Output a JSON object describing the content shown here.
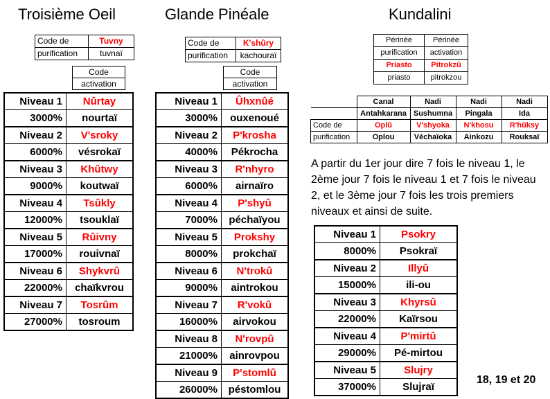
{
  "titles": {
    "third_eye": "Troisième Oeil",
    "pineal": "Glande Pinéale",
    "kundalini": "Kundalini"
  },
  "labels": {
    "code_de": "Code de",
    "purification": "purification",
    "code": "Code",
    "activation": "activation"
  },
  "third_eye": {
    "purif_code": "Tuvny",
    "purif_pron": "tuvnaï",
    "levels": [
      {
        "niveau": "Niveau 1",
        "code": "Nûrtay",
        "pct": "3000%",
        "pron": "nourtaï"
      },
      {
        "niveau": "Niveau 2",
        "code": "V'sroky",
        "pct": "6000%",
        "pron": "vésrokaï"
      },
      {
        "niveau": "Niveau 3",
        "code": "Khûtwy",
        "pct": "9000%",
        "pron": "koutwaï"
      },
      {
        "niveau": "Niveau 4",
        "code": "Tsûkly",
        "pct": "12000%",
        "pron": "tsouklaï"
      },
      {
        "niveau": "Niveau 5",
        "code": "Rûivny",
        "pct": "17000%",
        "pron": "rouivnaï"
      },
      {
        "niveau": "Niveau 6",
        "code": "Shykvrû",
        "pct": "22000%",
        "pron": "chaïkvrou"
      },
      {
        "niveau": "Niveau 7",
        "code": "Tosrûm",
        "pct": "27000%",
        "pron": "tosroum"
      }
    ]
  },
  "pineal": {
    "purif_code": "K'shûry",
    "purif_pron": "kachouraï",
    "levels": [
      {
        "niveau": "Niveau 1",
        "code": "Ûhxnûé",
        "pct": "3000%",
        "pron": "ouxenoué"
      },
      {
        "niveau": "Niveau 2",
        "code": "P'krosha",
        "pct": "4000%",
        "pron": "Pékrocha"
      },
      {
        "niveau": "Niveau 3",
        "code": "R'nhyro",
        "pct": "6000%",
        "pron": "airnaïro"
      },
      {
        "niveau": "Niveau 4",
        "code": "P'shyû",
        "pct": "7000%",
        "pron": "péchaïyou"
      },
      {
        "niveau": "Niveau 5",
        "code": "Prokshy",
        "pct": "8000%",
        "pron": "prokchaï"
      },
      {
        "niveau": "Niveau 6",
        "code": "N'trokû",
        "pct": "9000%",
        "pron": "aintrokou"
      },
      {
        "niveau": "Niveau 7",
        "code": "R'vokû",
        "pct": "16000%",
        "pron": "airvokou"
      },
      {
        "niveau": "Niveau 8",
        "code": "N'rovpû",
        "pct": "21000%",
        "pron": "ainrovpou"
      },
      {
        "niveau": "Niveau 9",
        "code": "P'stomlû",
        "pct": "26000%",
        "pron": "péstomlou"
      }
    ]
  },
  "kundalini": {
    "perinee_headers": [
      "Périnée",
      "Périnée"
    ],
    "perinee_sub": [
      "purification",
      "activation"
    ],
    "perinee_codes": [
      "Priasto",
      "Pitrokzû"
    ],
    "perinee_pron": [
      "priasto",
      "pitrokzou"
    ],
    "nadi_headers": [
      "Canal",
      "Nadi",
      "Nadi",
      "Nadi"
    ],
    "nadi_names": [
      "Antahkarana",
      "Sushumna",
      "Pingala",
      "Ida"
    ],
    "nadi_codes": [
      "Oplû",
      "V'shyoka",
      "N'khosu",
      "R'hûksy"
    ],
    "nadi_pron": [
      "Oplou",
      "Véchaïoka",
      "Ainkozu",
      "Rouksaï"
    ],
    "instructions": "A partir du 1er jour dire 7 fois le niveau 1, le 2ème jour  7 fois le niveau 1 et 7 fois le niveau 2, et le 3ème jour 7 fois les trois premiers niveaux et ainsi de suite.",
    "levels": [
      {
        "niveau": "Niveau 1",
        "code": "Psokry",
        "pct": "8000%",
        "pron": "Psokraï"
      },
      {
        "niveau": "Niveau 2",
        "code": "Illyû",
        "pct": "15000%",
        "pron": "ili-ou"
      },
      {
        "niveau": "Niveau 3",
        "code": "Khyrsû",
        "pct": "22000%",
        "pron": "Kaïrsou"
      },
      {
        "niveau": "Niveau 4",
        "code": "P'mirtû",
        "pct": "29000%",
        "pron": "Pé-mirtou"
      },
      {
        "niveau": "Niveau 5",
        "code": "Slujry",
        "pct": "37000%",
        "pron": "Slujraï"
      }
    ]
  },
  "footer": "18, 19 et 20"
}
